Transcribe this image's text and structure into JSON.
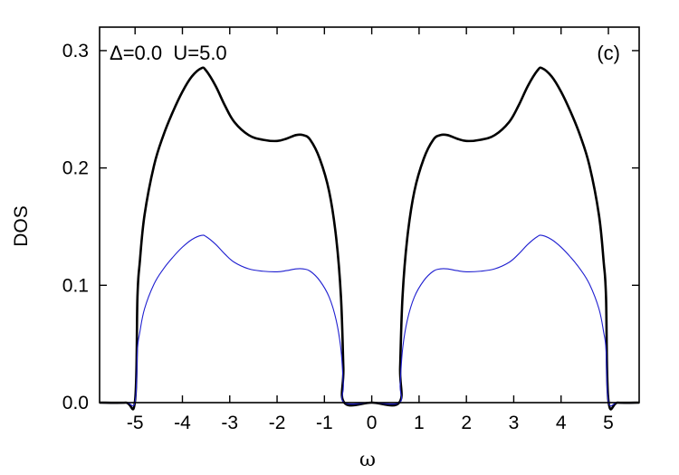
{
  "chart_data": {
    "type": "line",
    "xlabel": "ω",
    "ylabel": "DOS",
    "xlim": [
      -5.75,
      5.65
    ],
    "ylim": [
      0.0,
      0.3
    ],
    "xticks": [
      -5,
      -4,
      -3,
      -2,
      -1,
      0,
      1,
      2,
      3,
      4,
      5
    ],
    "xtick_labels": [
      "-5",
      "-4",
      "-3",
      "-2",
      "-1",
      "0",
      "1",
      "2",
      "3",
      "4",
      "5"
    ],
    "yticks": [
      0.0,
      0.1,
      0.2,
      0.3
    ],
    "ytick_labels": [
      "0.0",
      "0.1",
      "0.2",
      "0.3"
    ],
    "annotations": {
      "params": "Δ=0.0  U=5.0",
      "panel": "(c)"
    },
    "grid": false,
    "series": [
      {
        "color": "#000000",
        "points": [
          [
            -5.75,
            0.0
          ],
          [
            -5.2,
            0.0
          ],
          [
            -5.0,
            0.002
          ],
          [
            -4.95,
            0.09
          ],
          [
            -4.9,
            0.12
          ],
          [
            -4.8,
            0.16
          ],
          [
            -4.6,
            0.202
          ],
          [
            -4.4,
            0.228
          ],
          [
            -4.2,
            0.248
          ],
          [
            -4.0,
            0.265
          ],
          [
            -3.8,
            0.278
          ],
          [
            -3.6,
            0.285
          ],
          [
            -3.5,
            0.283
          ],
          [
            -3.3,
            0.27
          ],
          [
            -3.1,
            0.253
          ],
          [
            -2.9,
            0.239
          ],
          [
            -2.6,
            0.228
          ],
          [
            -2.3,
            0.224
          ],
          [
            -2.0,
            0.223
          ],
          [
            -1.8,
            0.225
          ],
          [
            -1.6,
            0.228
          ],
          [
            -1.45,
            0.228
          ],
          [
            -1.3,
            0.224
          ],
          [
            -1.1,
            0.208
          ],
          [
            -0.9,
            0.18
          ],
          [
            -0.75,
            0.14
          ],
          [
            -0.65,
            0.09
          ],
          [
            -0.6,
            0.03
          ],
          [
            -0.58,
            0.0
          ],
          [
            0.0,
            0.0
          ],
          [
            0.58,
            0.0
          ],
          [
            0.6,
            0.03
          ],
          [
            0.65,
            0.09
          ],
          [
            0.75,
            0.14
          ],
          [
            0.9,
            0.18
          ],
          [
            1.1,
            0.208
          ],
          [
            1.3,
            0.224
          ],
          [
            1.45,
            0.228
          ],
          [
            1.6,
            0.228
          ],
          [
            1.8,
            0.225
          ],
          [
            2.0,
            0.223
          ],
          [
            2.3,
            0.224
          ],
          [
            2.6,
            0.228
          ],
          [
            2.9,
            0.239
          ],
          [
            3.1,
            0.253
          ],
          [
            3.3,
            0.27
          ],
          [
            3.5,
            0.283
          ],
          [
            3.6,
            0.285
          ],
          [
            3.8,
            0.278
          ],
          [
            4.0,
            0.265
          ],
          [
            4.2,
            0.248
          ],
          [
            4.4,
            0.228
          ],
          [
            4.6,
            0.202
          ],
          [
            4.8,
            0.16
          ],
          [
            4.9,
            0.12
          ],
          [
            4.95,
            0.09
          ],
          [
            5.0,
            0.002
          ],
          [
            5.2,
            0.0
          ],
          [
            5.65,
            0.0
          ]
        ]
      },
      {
        "color": "#1f1fd0",
        "points": [
          [
            -5.75,
            0.0
          ],
          [
            -5.2,
            0.0
          ],
          [
            -5.0,
            0.001
          ],
          [
            -4.95,
            0.045
          ],
          [
            -4.9,
            0.06
          ],
          [
            -4.8,
            0.08
          ],
          [
            -4.6,
            0.101
          ],
          [
            -4.4,
            0.114
          ],
          [
            -4.2,
            0.124
          ],
          [
            -4.0,
            0.1325
          ],
          [
            -3.8,
            0.139
          ],
          [
            -3.6,
            0.1425
          ],
          [
            -3.5,
            0.1415
          ],
          [
            -3.3,
            0.135
          ],
          [
            -3.1,
            0.1265
          ],
          [
            -2.9,
            0.1195
          ],
          [
            -2.6,
            0.114
          ],
          [
            -2.3,
            0.112
          ],
          [
            -2.0,
            0.1115
          ],
          [
            -1.8,
            0.1125
          ],
          [
            -1.6,
            0.114
          ],
          [
            -1.45,
            0.114
          ],
          [
            -1.3,
            0.112
          ],
          [
            -1.1,
            0.104
          ],
          [
            -0.9,
            0.09
          ],
          [
            -0.75,
            0.07
          ],
          [
            -0.65,
            0.045
          ],
          [
            -0.6,
            0.015
          ],
          [
            -0.58,
            0.0
          ],
          [
            0.0,
            0.0
          ],
          [
            0.58,
            0.0
          ],
          [
            0.6,
            0.015
          ],
          [
            0.65,
            0.045
          ],
          [
            0.75,
            0.07
          ],
          [
            0.9,
            0.09
          ],
          [
            1.1,
            0.104
          ],
          [
            1.3,
            0.112
          ],
          [
            1.45,
            0.114
          ],
          [
            1.6,
            0.114
          ],
          [
            1.8,
            0.1125
          ],
          [
            2.0,
            0.1115
          ],
          [
            2.3,
            0.112
          ],
          [
            2.6,
            0.114
          ],
          [
            2.9,
            0.1195
          ],
          [
            3.1,
            0.1265
          ],
          [
            3.3,
            0.135
          ],
          [
            3.5,
            0.1415
          ],
          [
            3.6,
            0.1425
          ],
          [
            3.8,
            0.139
          ],
          [
            4.0,
            0.1325
          ],
          [
            4.2,
            0.124
          ],
          [
            4.4,
            0.114
          ],
          [
            4.6,
            0.101
          ],
          [
            4.8,
            0.08
          ],
          [
            4.9,
            0.06
          ],
          [
            4.95,
            0.045
          ],
          [
            5.0,
            0.001
          ],
          [
            5.2,
            0.0
          ],
          [
            5.65,
            0.0
          ]
        ]
      }
    ]
  }
}
